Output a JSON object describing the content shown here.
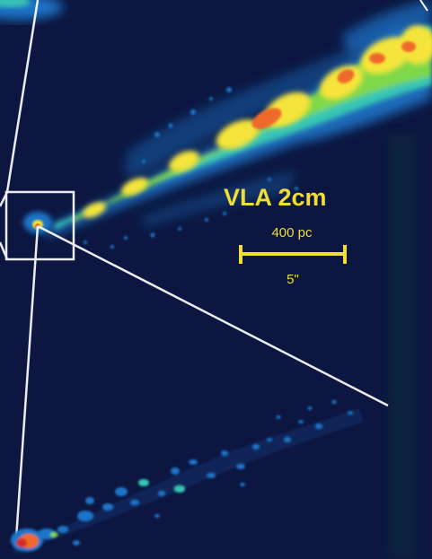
{
  "instrument_label": "VLA 2cm",
  "scale_bar": {
    "physical_label": "400 pc",
    "angular_label": "5\""
  },
  "colors": {
    "background": "#0c1640",
    "label": "#f0dd36",
    "zoom_lines": "#ffffff",
    "emission_low": "#1f74c8",
    "emission_mid": "#39c6b4",
    "emission_green": "#7fd84a",
    "emission_high": "#f4e43a",
    "emission_peak": "#ef6a2c",
    "emission_core": "#d32a20"
  }
}
